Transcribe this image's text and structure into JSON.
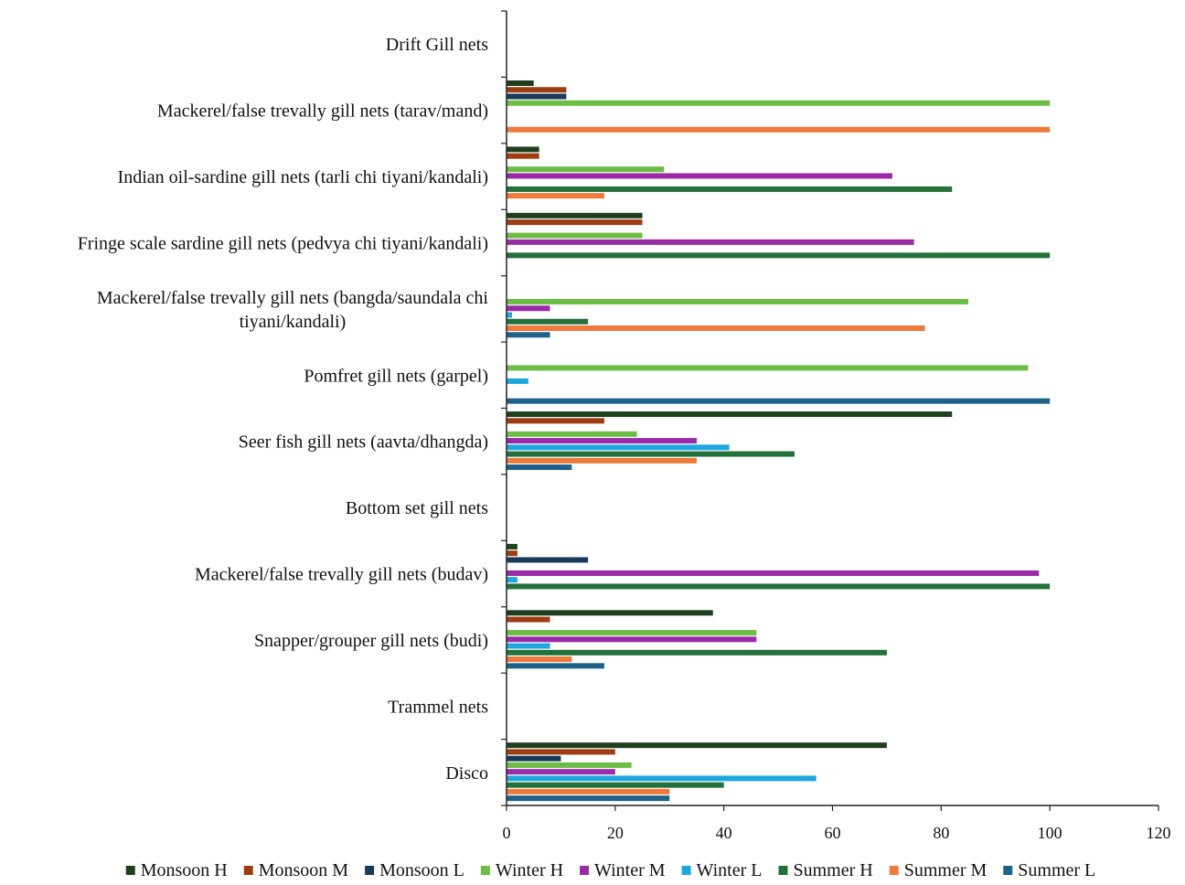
{
  "chart_data": {
    "type": "bar",
    "orientation": "horizontal",
    "categories": [
      "Drift Gill nets",
      "Mackerel/false trevally gill nets (tarav/mand)",
      "Indian oil-sardine gill nets (tarli chi tiyani/kandali)",
      "Fringe scale sardine gill nets (pedvya chi tiyani/kandali)",
      "Mackerel/false trevally gill nets (bangda/saundala chi tiyani/kandali)",
      "Pomfret gill nets (garpel)",
      "Seer fish gill nets (aavta/dhangda)",
      "Bottom set gill nets",
      "Mackerel/false trevally gill nets (budav)",
      "Snapper/grouper gill nets (budi)",
      "Trammel nets",
      "Disco"
    ],
    "series": [
      {
        "name": "Monsoon H",
        "color": "#1d3f1d",
        "values": [
          0,
          5,
          6,
          25,
          0,
          0,
          82,
          0,
          2,
          38,
          0,
          70
        ]
      },
      {
        "name": "Monsoon M",
        "color": "#9e3c12",
        "values": [
          0,
          11,
          6,
          25,
          0,
          0,
          18,
          0,
          2,
          8,
          0,
          20
        ]
      },
      {
        "name": "Monsoon L",
        "color": "#183b5a",
        "values": [
          0,
          11,
          0,
          0,
          0,
          0,
          0,
          0,
          15,
          0,
          0,
          10
        ]
      },
      {
        "name": "Winter H",
        "color": "#6bbd45",
        "values": [
          0,
          100,
          29,
          25,
          85,
          96,
          24,
          0,
          0,
          46,
          0,
          23
        ]
      },
      {
        "name": "Winter M",
        "color": "#9b2aa6",
        "values": [
          0,
          0,
          71,
          75,
          8,
          0,
          35,
          0,
          98,
          46,
          0,
          20
        ]
      },
      {
        "name": "Winter L",
        "color": "#1ea6df",
        "values": [
          0,
          0,
          0,
          0,
          1,
          4,
          41,
          0,
          2,
          8,
          0,
          57
        ]
      },
      {
        "name": "Summer H",
        "color": "#23703b",
        "values": [
          0,
          0,
          82,
          100,
          15,
          0,
          53,
          0,
          100,
          70,
          0,
          40
        ]
      },
      {
        "name": "Summer M",
        "color": "#ee7a3b",
        "values": [
          0,
          100,
          18,
          0,
          77,
          0,
          35,
          0,
          0,
          12,
          0,
          30
        ]
      },
      {
        "name": "Summer L",
        "color": "#1f6289",
        "values": [
          0,
          0,
          0,
          0,
          8,
          100,
          12,
          0,
          0,
          18,
          0,
          30
        ]
      }
    ],
    "x_ticks": [
      "0",
      "20",
      "40",
      "60",
      "80",
      "100",
      "120"
    ],
    "xlim": [
      0,
      120
    ],
    "title": "",
    "xlabel": "",
    "ylabel": "",
    "grid": false,
    "legend_position": "bottom"
  }
}
